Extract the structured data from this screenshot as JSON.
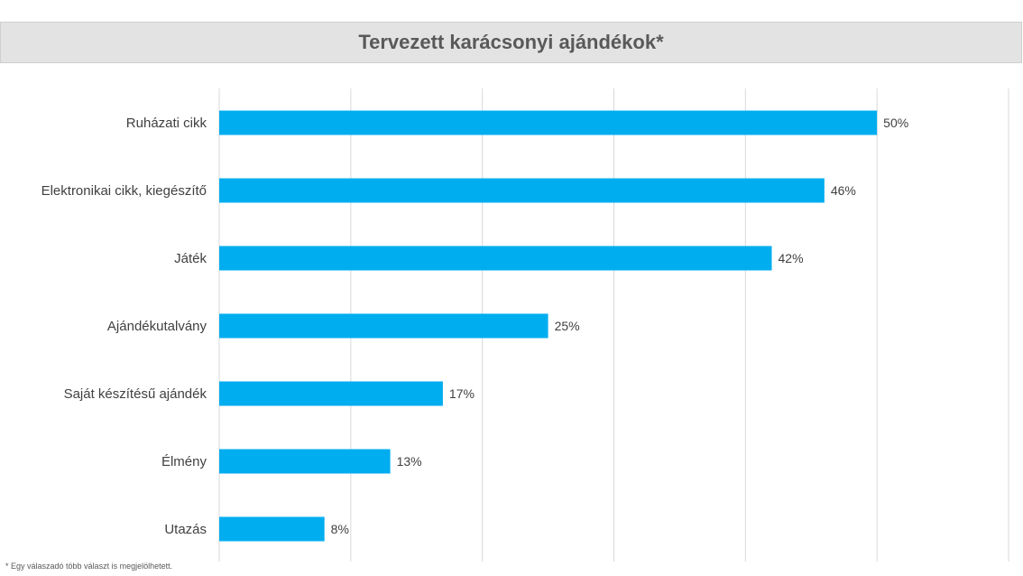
{
  "chart_data": {
    "type": "bar",
    "orientation": "horizontal",
    "title": "Tervezett karácsonyi ajándékok*",
    "categories": [
      "Ruházati cikk",
      "Elektronikai cikk, kiegészítő",
      "Játék",
      "Ajándékutalvány",
      "Saját készítésű ajándék",
      "Élmény",
      "Utazás"
    ],
    "values": [
      50,
      46,
      42,
      25,
      17,
      13,
      8
    ],
    "value_labels": [
      "50%",
      "46%",
      "42%",
      "25%",
      "17%",
      "13%",
      "8%"
    ],
    "xlim": [
      0,
      60
    ],
    "grid": true,
    "bar_color": "#00adef",
    "footnote": "* Egy válaszadó több választ is megjelölhetett."
  }
}
